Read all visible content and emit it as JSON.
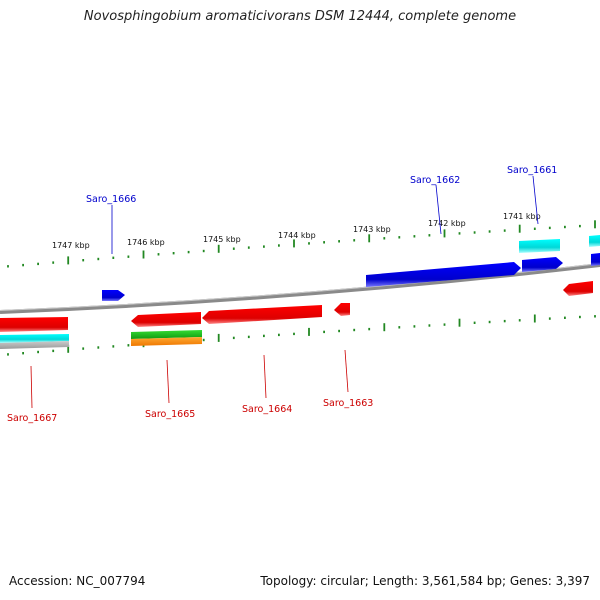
{
  "title": "Novosphingobium aromaticivorans DSM 12444, complete genome",
  "accession": "Accession: NC_007794",
  "summary": "Topology: circular; Length: 3,561,584 bp; Genes: 3,397",
  "kbp_labels": [
    "1747 kbp",
    "1746 kbp",
    "1745 kbp",
    "1744 kbp",
    "1743 kbp",
    "1742 kbp",
    "1741 kbp"
  ],
  "genes_top": [
    "Saro_1666",
    "Saro_1662",
    "Saro_1661"
  ],
  "genes_bottom": [
    "Saro_1667",
    "Saro_1665",
    "Saro_1664",
    "Saro_1663"
  ],
  "colors": {
    "forward": "#0000ee",
    "reverse": "#ee0000",
    "cyan": "#00e5e5",
    "green": "#22bb22",
    "orange": "#ff8800",
    "backbone": "#808080",
    "ticks": "#228822"
  }
}
